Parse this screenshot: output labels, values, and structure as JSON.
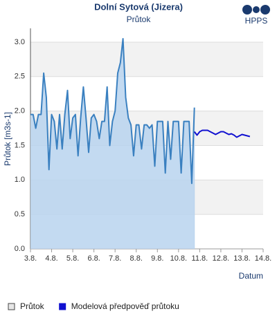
{
  "logo": "HPPS",
  "chart_data": {
    "type": "line",
    "title": "Dolní Sytová (Jizera)",
    "subtitle": "Průtok",
    "y_label": "Průtok [m3s-1]",
    "x_label": "Datum",
    "xlim": [
      3,
      14
    ],
    "ylim": [
      0,
      3.2
    ],
    "xticks": [
      {
        "value": 3,
        "label": "3.8."
      },
      {
        "value": 4,
        "label": "4.8."
      },
      {
        "value": 5,
        "label": "5.8."
      },
      {
        "value": 6,
        "label": "6.8."
      },
      {
        "value": 7,
        "label": "7.8."
      },
      {
        "value": 8,
        "label": "8.8."
      },
      {
        "value": 9,
        "label": "9.8."
      },
      {
        "value": 10,
        "label": "10.8."
      },
      {
        "value": 11,
        "label": "11.8."
      },
      {
        "value": 12,
        "label": "12.8."
      },
      {
        "value": 13,
        "label": "13.8."
      },
      {
        "value": 14,
        "label": "14.8."
      }
    ],
    "yticks": [
      {
        "value": 0,
        "label": "0.0"
      },
      0.5,
      {
        "value": 1,
        "label": "1.0"
      },
      1.5,
      {
        "value": 2,
        "label": "2.0"
      },
      2.5,
      {
        "value": 3,
        "label": "3.0"
      }
    ],
    "grid": true,
    "series": [
      {
        "name": "Průtok",
        "color": "#3a80c0",
        "fill": "#b9d4ee",
        "area": true,
        "x": [
          3,
          3.125,
          3.25,
          3.375,
          3.5,
          3.625,
          3.75,
          3.875,
          4,
          4.125,
          4.25,
          4.375,
          4.5,
          4.625,
          4.75,
          4.875,
          5,
          5.125,
          5.25,
          5.375,
          5.5,
          5.625,
          5.75,
          5.875,
          6,
          6.125,
          6.25,
          6.375,
          6.5,
          6.625,
          6.75,
          6.875,
          7,
          7.125,
          7.25,
          7.375,
          7.5,
          7.625,
          7.75,
          7.875,
          8,
          8.125,
          8.25,
          8.375,
          8.5,
          8.625,
          8.75,
          8.875,
          9,
          9.125,
          9.25,
          9.375,
          9.5,
          9.625,
          9.75,
          9.875,
          10,
          10.125,
          10.25,
          10.375,
          10.5,
          10.625,
          10.75
        ],
        "values": [
          1.95,
          1.95,
          1.75,
          1.95,
          1.95,
          2.55,
          2.2,
          1.15,
          1.95,
          1.85,
          1.45,
          1.95,
          1.45,
          1.95,
          2.3,
          1.6,
          1.9,
          1.95,
          1.35,
          1.9,
          2.35,
          1.9,
          1.4,
          1.9,
          1.95,
          1.85,
          1.6,
          1.85,
          1.85,
          2.35,
          1.5,
          1.85,
          2.0,
          2.55,
          2.7,
          3.05,
          2.2,
          1.9,
          1.8,
          1.35,
          1.8,
          1.8,
          1.45,
          1.8,
          1.8,
          1.75,
          1.8,
          1.2,
          1.85,
          1.85,
          1.85,
          1.1,
          1.85,
          1.3,
          1.85,
          1.85,
          1.85,
          1.1,
          1.85,
          1.85,
          1.85,
          0.95,
          2.05
        ]
      },
      {
        "name": "Modelová předpověď průtoku",
        "color": "#1010d0",
        "area": false,
        "x": [
          10.75,
          10.875,
          11,
          11.125,
          11.25,
          11.375,
          11.5,
          11.625,
          11.75,
          11.875,
          12,
          12.125,
          12.25,
          12.375,
          12.5,
          12.625,
          12.75,
          12.875,
          13,
          13.125,
          13.25,
          13.375
        ],
        "values": [
          1.7,
          1.65,
          1.7,
          1.72,
          1.72,
          1.72,
          1.7,
          1.68,
          1.66,
          1.68,
          1.7,
          1.7,
          1.68,
          1.66,
          1.67,
          1.65,
          1.62,
          1.64,
          1.66,
          1.65,
          1.64,
          1.63
        ]
      }
    ]
  }
}
